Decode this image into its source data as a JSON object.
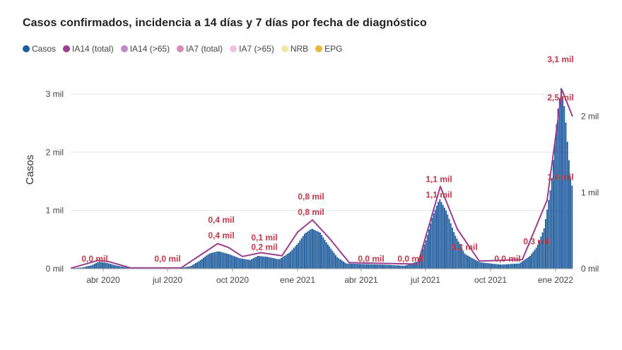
{
  "chart_data": {
    "type": "area",
    "title": "Casos confirmados, incidencia a 14 días y 7 días por fecha de diagnóstico",
    "ylabel": "Casos",
    "ylim_left": [
      0,
      3400
    ],
    "ylim_right": [
      0,
      2600
    ],
    "y_ticks_left": [
      {
        "value": 0,
        "label": "0 mil"
      },
      {
        "value": 1000,
        "label": "1 mil"
      },
      {
        "value": 2000,
        "label": "2 mil"
      },
      {
        "value": 3000,
        "label": "3 mil"
      }
    ],
    "y_ticks_right": [
      {
        "value": 0,
        "label": "0 mil"
      },
      {
        "value": 1000,
        "label": "1 mil"
      },
      {
        "value": 2000,
        "label": "2 mil"
      }
    ],
    "x_range": [
      "2020-02-15",
      "2022-01-25"
    ],
    "x_ticks": [
      {
        "date": "2020-04-01",
        "label": "abr 2020"
      },
      {
        "date": "2020-07-01",
        "label": "jul 2020"
      },
      {
        "date": "2020-10-01",
        "label": "oct 2020"
      },
      {
        "date": "2021-01-01",
        "label": "ene 2021"
      },
      {
        "date": "2021-04-01",
        "label": "abr 2021"
      },
      {
        "date": "2021-07-01",
        "label": "jul 2021"
      },
      {
        "date": "2021-10-01",
        "label": "oct 2021"
      },
      {
        "date": "2022-01-01",
        "label": "ene 2022"
      }
    ],
    "legend": [
      {
        "name": "Casos",
        "color": "#1f5c9e"
      },
      {
        "name": "IA14 (total)",
        "color": "#9b3f8f"
      },
      {
        "name": "IA14 (>65)",
        "color": "#c08ac8"
      },
      {
        "name": "IA7 (total)",
        "color": "#d88cb6"
      },
      {
        "name": "IA7 (>65)",
        "color": "#efc3dc"
      },
      {
        "name": "NRB",
        "color": "#f2e6a4"
      },
      {
        "name": "EPG",
        "color": "#e6b93c"
      }
    ],
    "series": [
      {
        "name": "Casos",
        "points": [
          [
            "2020-02-15",
            5
          ],
          [
            "2020-03-01",
            20
          ],
          [
            "2020-03-15",
            60
          ],
          [
            "2020-03-25",
            120
          ],
          [
            "2020-04-05",
            100
          ],
          [
            "2020-04-20",
            50
          ],
          [
            "2020-05-10",
            15
          ],
          [
            "2020-06-10",
            5
          ],
          [
            "2020-07-15",
            10
          ],
          [
            "2020-08-01",
            40
          ],
          [
            "2020-08-15",
            140
          ],
          [
            "2020-08-28",
            260
          ],
          [
            "2020-09-10",
            300
          ],
          [
            "2020-09-25",
            250
          ],
          [
            "2020-10-10",
            180
          ],
          [
            "2020-10-25",
            150
          ],
          [
            "2020-11-05",
            220
          ],
          [
            "2020-11-20",
            200
          ],
          [
            "2020-12-05",
            160
          ],
          [
            "2020-12-20",
            280
          ],
          [
            "2021-01-01",
            440
          ],
          [
            "2021-01-10",
            600
          ],
          [
            "2021-01-20",
            690
          ],
          [
            "2021-02-01",
            620
          ],
          [
            "2021-02-10",
            450
          ],
          [
            "2021-02-25",
            200
          ],
          [
            "2021-03-10",
            90
          ],
          [
            "2021-04-01",
            80
          ],
          [
            "2021-05-01",
            70
          ],
          [
            "2021-06-01",
            50
          ],
          [
            "2021-06-20",
            130
          ],
          [
            "2021-07-01",
            500
          ],
          [
            "2021-07-10",
            900
          ],
          [
            "2021-07-20",
            1200
          ],
          [
            "2021-07-30",
            980
          ],
          [
            "2021-08-10",
            600
          ],
          [
            "2021-08-25",
            250
          ],
          [
            "2021-09-15",
            110
          ],
          [
            "2021-10-15",
            70
          ],
          [
            "2021-11-10",
            90
          ],
          [
            "2021-11-25",
            220
          ],
          [
            "2021-12-05",
            380
          ],
          [
            "2021-12-15",
            700
          ],
          [
            "2021-12-25",
            1450
          ],
          [
            "2022-01-03",
            2700
          ],
          [
            "2022-01-08",
            3100
          ],
          [
            "2022-01-13",
            2750
          ],
          [
            "2022-01-18",
            2000
          ],
          [
            "2022-01-22",
            1450
          ],
          [
            "2022-01-25",
            1400
          ]
        ]
      },
      {
        "name": "IA14 (total)",
        "points": [
          [
            "2020-02-15",
            5
          ],
          [
            "2020-03-25",
            110
          ],
          [
            "2020-04-10",
            90
          ],
          [
            "2020-05-10",
            10
          ],
          [
            "2020-07-20",
            10
          ],
          [
            "2020-08-20",
            200
          ],
          [
            "2020-09-10",
            330
          ],
          [
            "2020-09-25",
            280
          ],
          [
            "2020-10-15",
            160
          ],
          [
            "2020-11-10",
            210
          ],
          [
            "2020-12-10",
            170
          ],
          [
            "2021-01-01",
            480
          ],
          [
            "2021-01-22",
            640
          ],
          [
            "2021-02-15",
            400
          ],
          [
            "2021-03-15",
            80
          ],
          [
            "2021-06-20",
            60
          ],
          [
            "2021-07-22",
            1080
          ],
          [
            "2021-08-15",
            520
          ],
          [
            "2021-09-15",
            100
          ],
          [
            "2021-11-15",
            120
          ],
          [
            "2021-12-20",
            900
          ],
          [
            "2022-01-10",
            2350
          ],
          [
            "2022-01-25",
            2000
          ]
        ]
      }
    ],
    "annotations": [
      {
        "date": "2020-03-20",
        "value": 0,
        "label": "0,0 mil"
      },
      {
        "date": "2020-07-01",
        "value": 0,
        "label": "0,0 mil"
      },
      {
        "date": "2020-09-15",
        "value": 400,
        "label": "0,4 mil"
      },
      {
        "date": "2020-09-15",
        "value": 400,
        "label": "0,4 mil"
      },
      {
        "date": "2020-11-15",
        "value": 200,
        "label": "0,2 mil"
      },
      {
        "date": "2020-11-15",
        "value": 100,
        "label": "0,1 mil"
      },
      {
        "date": "2021-01-20",
        "value": 800,
        "label": "0,8 mil"
      },
      {
        "date": "2021-01-20",
        "value": 800,
        "label": "0,8 mil"
      },
      {
        "date": "2021-04-15",
        "value": 0,
        "label": "0,0 mil"
      },
      {
        "date": "2021-06-10",
        "value": 0,
        "label": "0,0 mil"
      },
      {
        "date": "2021-07-20",
        "value": 1100,
        "label": "1,1 mil"
      },
      {
        "date": "2021-07-20",
        "value": 1100,
        "label": "1,1 mil"
      },
      {
        "date": "2021-08-25",
        "value": 200,
        "label": "0,2 mil"
      },
      {
        "date": "2021-10-25",
        "value": 0,
        "label": "0,0 mil"
      },
      {
        "date": "2021-12-05",
        "value": 300,
        "label": "0,3 mil"
      },
      {
        "date": "2022-01-08",
        "value": 1400,
        "label": "1,4 mil"
      },
      {
        "date": "2022-01-08",
        "value": 2500,
        "label": "2,5 mil"
      },
      {
        "date": "2022-01-08",
        "value": 3100,
        "label": "3,1 mil"
      }
    ]
  }
}
